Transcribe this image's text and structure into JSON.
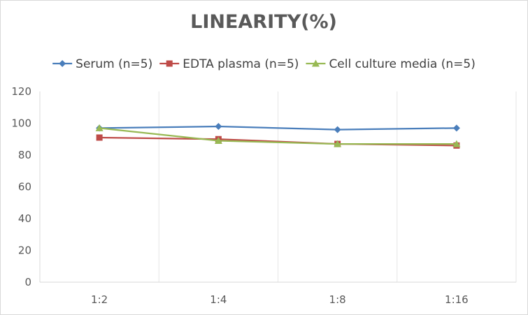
{
  "chart_data": {
    "type": "line",
    "title": "LINEARITY(%)",
    "xlabel": "",
    "ylabel": "",
    "categories": [
      "1:2",
      "1:4",
      "1:8",
      "1:16"
    ],
    "ylim": [
      0,
      120
    ],
    "yticks": [
      0,
      20,
      40,
      60,
      80,
      100,
      120
    ],
    "grid": "vertical",
    "legend_position": "top",
    "series": [
      {
        "name": "Serum (n=5)",
        "values": [
          97,
          98,
          96,
          97
        ],
        "color": "#4a7ebb",
        "marker": "diamond"
      },
      {
        "name": "EDTA plasma (n=5)",
        "values": [
          91,
          90,
          87,
          86
        ],
        "color": "#be4b48",
        "marker": "square"
      },
      {
        "name": "Cell culture media (n=5)",
        "values": [
          97,
          89,
          87,
          87
        ],
        "color": "#98b954",
        "marker": "triangle"
      }
    ]
  }
}
